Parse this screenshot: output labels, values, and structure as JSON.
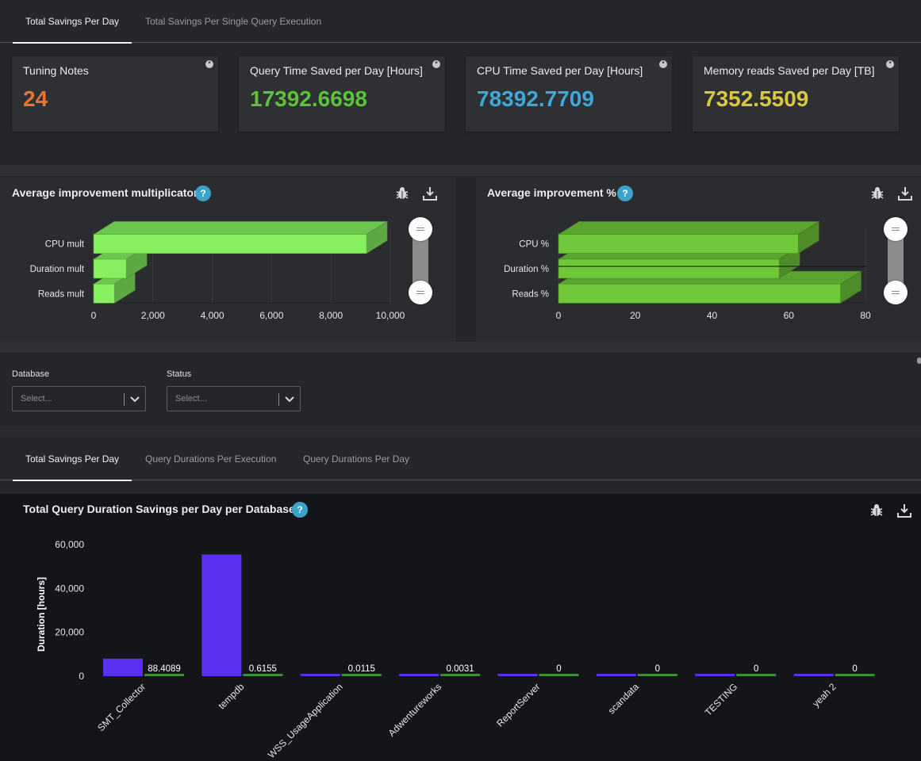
{
  "top_tabs": [
    {
      "label": "Total Savings Per Day",
      "active": true
    },
    {
      "label": "Total Savings Per Single Query Execution",
      "active": false
    }
  ],
  "kpis": [
    {
      "label": "Tuning Notes",
      "value": "24",
      "color": "#e8742e"
    },
    {
      "label": "Query Time Saved per Day [Hours]",
      "value": "17392.6698",
      "color": "#5cc23a"
    },
    {
      "label": "CPU Time Saved per Day [Hours]",
      "value": "78392.7709",
      "color": "#3fa8d8"
    },
    {
      "label": "Memory reads Saved per Day [TB]",
      "value": "7352.5509",
      "color": "#d8c93a"
    }
  ],
  "kpi_info_glyph": "*",
  "help_glyph": "?",
  "toolbar_icons": [
    "bug-icon",
    "download-icon"
  ],
  "mult_chart": {
    "title": "Average improvement multiplicator",
    "chart_data": {
      "type": "bar",
      "orientation": "horizontal",
      "categories": [
        "CPU mult",
        "Duration mult",
        "Reads mult"
      ],
      "values": [
        9200,
        1100,
        700
      ],
      "xlim": [
        0,
        10000
      ],
      "xticks": [
        "0",
        "2,000",
        "4,000",
        "6,000",
        "8,000",
        "10,000"
      ],
      "color": "#86f05f"
    }
  },
  "pct_chart": {
    "title": "Average improvement %",
    "chart_data": {
      "type": "bar",
      "orientation": "horizontal",
      "categories": [
        "CPU %",
        "Duration %",
        "Reads %"
      ],
      "values": [
        62.5,
        57.5,
        73.5
      ],
      "xlim": [
        0,
        80
      ],
      "xticks": [
        "0",
        "20",
        "40",
        "60",
        "80"
      ],
      "color": "#6fc83a"
    }
  },
  "filters": {
    "database": {
      "label": "Database",
      "placeholder": "Select..."
    },
    "status": {
      "label": "Status",
      "placeholder": "Select..."
    }
  },
  "bottom_tabs": [
    {
      "label": "Total Savings Per Day",
      "active": true
    },
    {
      "label": "Query Durations Per Execution",
      "active": false
    },
    {
      "label": "Query Durations Per Day",
      "active": false
    }
  ],
  "db_chart": {
    "title": "Total Query Duration Savings per Day per Database",
    "chart_data": {
      "type": "bar",
      "categories": [
        "SMT_Collector",
        "tempdb",
        "WSS_UsageApplication",
        "Adwentureworks",
        "ReportServer",
        "scandata",
        "TESTING",
        "yeah 2"
      ],
      "series": [
        {
          "values": [
            8000,
            55500,
            0,
            0,
            0,
            0,
            0,
            0
          ],
          "color": "#5b2ff0"
        },
        {
          "values": [
            88.4089,
            0.6155,
            0.0115,
            0.0031,
            0,
            0,
            0,
            0
          ],
          "labels": [
            "88.4089",
            "0.6155",
            "0.0115",
            "0.0031",
            "0",
            "0",
            "0",
            "0"
          ],
          "color": "#3e8c3a"
        }
      ],
      "ylabel": "Duration [hours]",
      "ylim": [
        0,
        60000
      ],
      "yticks": [
        "0",
        "20,000",
        "40,000",
        "60,000"
      ]
    }
  }
}
